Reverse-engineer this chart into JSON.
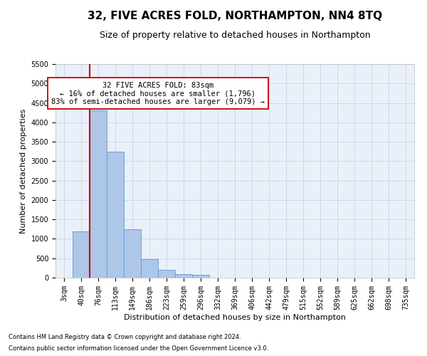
{
  "title": "32, FIVE ACRES FOLD, NORTHAMPTON, NN4 8TQ",
  "subtitle": "Size of property relative to detached houses in Northampton",
  "xlabel": "Distribution of detached houses by size in Northampton",
  "ylabel": "Number of detached properties",
  "footnote1": "Contains HM Land Registry data © Crown copyright and database right 2024.",
  "footnote2": "Contains public sector information licensed under the Open Government Licence v3.0.",
  "bar_labels": [
    "3sqm",
    "40sqm",
    "76sqm",
    "113sqm",
    "149sqm",
    "186sqm",
    "223sqm",
    "259sqm",
    "296sqm",
    "332sqm",
    "369sqm",
    "406sqm",
    "442sqm",
    "479sqm",
    "515sqm",
    "552sqm",
    "589sqm",
    "625sqm",
    "662sqm",
    "698sqm",
    "735sqm"
  ],
  "bar_values": [
    0,
    1200,
    4300,
    3250,
    1250,
    480,
    200,
    100,
    65,
    0,
    0,
    0,
    0,
    0,
    0,
    0,
    0,
    0,
    0,
    0,
    0
  ],
  "bar_color": "#aec6e8",
  "bar_edge_color": "#5b9bd5",
  "grid_color": "#c8d4e8",
  "background_color": "#eaf0f9",
  "vline_color": "#cc0000",
  "vline_x": 1.5,
  "annotation_text": "32 FIVE ACRES FOLD: 83sqm\n← 16% of detached houses are smaller (1,796)\n83% of semi-detached houses are larger (9,079) →",
  "annotation_box_color": "#ffffff",
  "annotation_box_edge": "#cc0000",
  "ylim": [
    0,
    5500
  ],
  "yticks": [
    0,
    500,
    1000,
    1500,
    2000,
    2500,
    3000,
    3500,
    4000,
    4500,
    5000,
    5500
  ],
  "title_fontsize": 11,
  "subtitle_fontsize": 9,
  "axis_label_fontsize": 8,
  "tick_fontsize": 7,
  "annot_fontsize": 7.5,
  "ylabel_fontsize": 8
}
